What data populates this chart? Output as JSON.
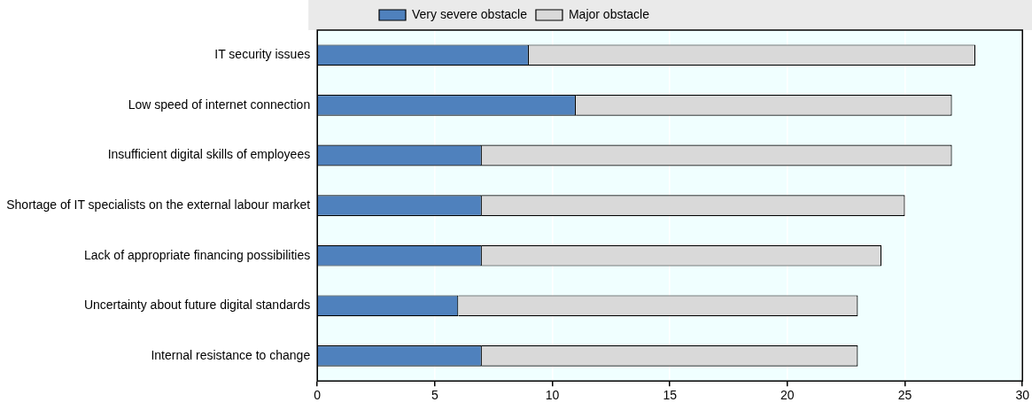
{
  "chart_data": {
    "type": "bar",
    "orientation": "horizontal",
    "stacked": true,
    "categories": [
      "IT security issues",
      "Low speed of internet connection",
      "Insufficient digital skills of employees",
      "Shortage of IT specialists on the external labour market",
      "Lack of appropriate financing possibilities",
      "Uncertainty about future digital standards",
      "Internal resistance to change"
    ],
    "series": [
      {
        "name": "Very severe obstacle",
        "color": "#4f81bd",
        "values": [
          9,
          11,
          7,
          7,
          7,
          6,
          7
        ]
      },
      {
        "name": "Major obstacle",
        "color": "#d9d9d9",
        "values": [
          19,
          16,
          20,
          18,
          17,
          17,
          16
        ]
      }
    ],
    "xlim": [
      0,
      30
    ],
    "xticks": [
      0,
      5,
      10,
      15,
      20,
      25,
      30
    ],
    "grid": "x",
    "legend": "top"
  }
}
